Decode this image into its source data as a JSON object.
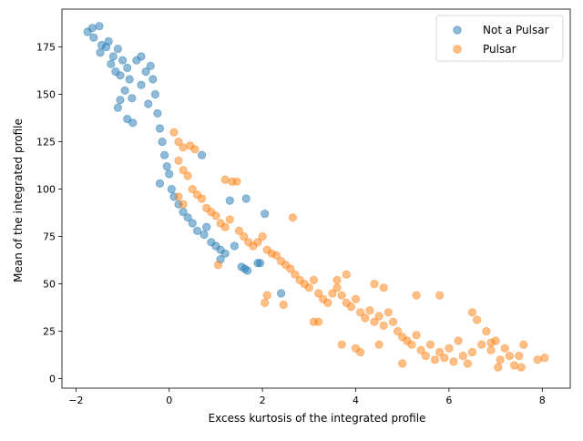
{
  "chart_data": {
    "type": "scatter",
    "title": "",
    "xlabel": "Excess kurtosis of the integrated profile",
    "ylabel": "Mean of the integrated profile",
    "xlim": [
      -2.3,
      8.6
    ],
    "ylim": [
      -5,
      195
    ],
    "xticks": [
      -2,
      0,
      2,
      4,
      6,
      8
    ],
    "yticks": [
      0,
      25,
      50,
      75,
      100,
      125,
      150,
      175
    ],
    "grid": false,
    "legend_position": "top-right",
    "marker_alpha": 0.5,
    "series": [
      {
        "name": "Not a Pulsar",
        "color": "#1f77b4",
        "points": [
          [
            -1.75,
            183
          ],
          [
            -1.65,
            185
          ],
          [
            -1.5,
            186
          ],
          [
            -1.62,
            180
          ],
          [
            -1.45,
            176
          ],
          [
            -1.48,
            172
          ],
          [
            -1.3,
            178
          ],
          [
            -1.35,
            175
          ],
          [
            -1.2,
            170
          ],
          [
            -1.25,
            166
          ],
          [
            -1.1,
            174
          ],
          [
            -1.0,
            168
          ],
          [
            -1.05,
            160
          ],
          [
            -0.9,
            164
          ],
          [
            -0.85,
            158
          ],
          [
            -0.7,
            168
          ],
          [
            -0.6,
            170
          ],
          [
            -1.15,
            162
          ],
          [
            -0.95,
            152
          ],
          [
            -0.8,
            148
          ],
          [
            -1.05,
            147
          ],
          [
            -1.1,
            143
          ],
          [
            -0.9,
            137
          ],
          [
            -0.78,
            135
          ],
          [
            -0.6,
            155
          ],
          [
            -0.5,
            162
          ],
          [
            -0.4,
            165
          ],
          [
            -0.35,
            158
          ],
          [
            -0.3,
            150
          ],
          [
            -0.45,
            145
          ],
          [
            -0.25,
            140
          ],
          [
            -0.2,
            132
          ],
          [
            -0.15,
            125
          ],
          [
            -0.1,
            118
          ],
          [
            -0.05,
            112
          ],
          [
            0.0,
            108
          ],
          [
            -0.2,
            103
          ],
          [
            0.05,
            100
          ],
          [
            0.1,
            96
          ],
          [
            0.2,
            92
          ],
          [
            0.3,
            88
          ],
          [
            0.4,
            85
          ],
          [
            0.5,
            82
          ],
          [
            0.6,
            78
          ],
          [
            0.75,
            76
          ],
          [
            0.9,
            72
          ],
          [
            1.0,
            70
          ],
          [
            1.1,
            68
          ],
          [
            1.2,
            66
          ],
          [
            1.4,
            70
          ],
          [
            1.55,
            59
          ],
          [
            1.62,
            58
          ],
          [
            1.68,
            57
          ],
          [
            2.05,
            87
          ],
          [
            1.65,
            95
          ],
          [
            1.9,
            61
          ],
          [
            1.95,
            61
          ],
          [
            2.4,
            45
          ],
          [
            1.1,
            63
          ],
          [
            0.8,
            80
          ],
          [
            1.3,
            94
          ],
          [
            0.7,
            118
          ]
        ]
      },
      {
        "name": "Pulsar",
        "color": "#ff7f0e",
        "points": [
          [
            0.1,
            130
          ],
          [
            0.2,
            125
          ],
          [
            0.3,
            122
          ],
          [
            0.45,
            123
          ],
          [
            0.55,
            121
          ],
          [
            0.2,
            115
          ],
          [
            0.3,
            110
          ],
          [
            0.4,
            107
          ],
          [
            0.5,
            100
          ],
          [
            0.6,
            97
          ],
          [
            0.2,
            96
          ],
          [
            0.3,
            92
          ],
          [
            0.7,
            95
          ],
          [
            0.8,
            90
          ],
          [
            0.9,
            88
          ],
          [
            1.0,
            86
          ],
          [
            1.1,
            82
          ],
          [
            1.2,
            80
          ],
          [
            1.3,
            84
          ],
          [
            1.35,
            104
          ],
          [
            1.45,
            104
          ],
          [
            1.2,
            105
          ],
          [
            1.05,
            60
          ],
          [
            1.5,
            78
          ],
          [
            1.6,
            75
          ],
          [
            1.7,
            72
          ],
          [
            1.8,
            70
          ],
          [
            1.9,
            72
          ],
          [
            2.0,
            75
          ],
          [
            2.1,
            68
          ],
          [
            2.2,
            66
          ],
          [
            2.3,
            65
          ],
          [
            2.4,
            62
          ],
          [
            2.5,
            60
          ],
          [
            2.6,
            58
          ],
          [
            2.7,
            55
          ],
          [
            2.65,
            85
          ],
          [
            2.05,
            40
          ],
          [
            2.1,
            44
          ],
          [
            2.45,
            39
          ],
          [
            2.8,
            52
          ],
          [
            2.9,
            50
          ],
          [
            3.0,
            48
          ],
          [
            3.1,
            52
          ],
          [
            3.2,
            45
          ],
          [
            3.3,
            42
          ],
          [
            3.4,
            40
          ],
          [
            3.5,
            45
          ],
          [
            3.6,
            48
          ],
          [
            3.7,
            44
          ],
          [
            3.8,
            40
          ],
          [
            3.9,
            38
          ],
          [
            4.0,
            42
          ],
          [
            4.1,
            35
          ],
          [
            4.2,
            32
          ],
          [
            4.3,
            36
          ],
          [
            4.4,
            30
          ],
          [
            4.5,
            33
          ],
          [
            4.6,
            28
          ],
          [
            4.7,
            35
          ],
          [
            4.8,
            30
          ],
          [
            4.9,
            25
          ],
          [
            5.0,
            22
          ],
          [
            5.1,
            20
          ],
          [
            5.2,
            18
          ],
          [
            5.3,
            23
          ],
          [
            5.4,
            15
          ],
          [
            5.5,
            12
          ],
          [
            5.6,
            18
          ],
          [
            5.7,
            10
          ],
          [
            5.8,
            14
          ],
          [
            5.9,
            11
          ],
          [
            6.0,
            16
          ],
          [
            6.1,
            9
          ],
          [
            6.2,
            20
          ],
          [
            6.3,
            12
          ],
          [
            6.4,
            8
          ],
          [
            6.5,
            14
          ],
          [
            6.6,
            31
          ],
          [
            6.7,
            18
          ],
          [
            6.8,
            25
          ],
          [
            6.9,
            15
          ],
          [
            7.0,
            20
          ],
          [
            7.1,
            10
          ],
          [
            7.2,
            16
          ],
          [
            7.3,
            12
          ],
          [
            7.4,
            7
          ],
          [
            7.5,
            12
          ],
          [
            7.6,
            18
          ],
          [
            7.9,
            10
          ],
          [
            8.05,
            11
          ],
          [
            7.05,
            6
          ],
          [
            7.55,
            6
          ],
          [
            5.8,
            44
          ],
          [
            5.3,
            44
          ],
          [
            4.4,
            50
          ],
          [
            3.8,
            55
          ],
          [
            3.6,
            52
          ],
          [
            4.6,
            48
          ],
          [
            3.2,
            30
          ],
          [
            3.7,
            18
          ],
          [
            4.0,
            16
          ],
          [
            4.1,
            14
          ],
          [
            4.5,
            18
          ],
          [
            5.0,
            8
          ],
          [
            3.1,
            30
          ],
          [
            6.5,
            35
          ],
          [
            6.9,
            19
          ]
        ]
      }
    ]
  }
}
